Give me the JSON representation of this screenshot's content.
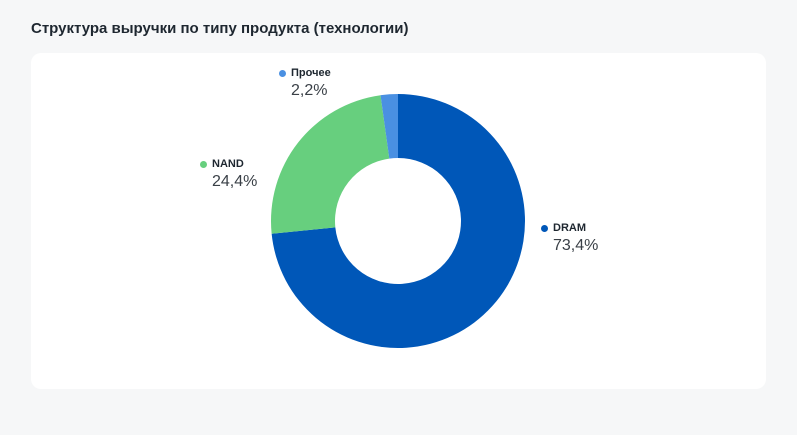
{
  "title": "Структура выручки по типу продукта (технологии)",
  "chart_data": {
    "type": "pie",
    "variant": "donut",
    "title": "Структура выручки по типу продукта (технологии)",
    "slices": [
      {
        "name": "DRAM",
        "value": 73.4,
        "label": "73,4%",
        "color": "#0057b8"
      },
      {
        "name": "NAND",
        "value": 24.4,
        "label": "24,4%",
        "color": "#67cf7e"
      },
      {
        "name": "Прочее",
        "value": 2.2,
        "label": "2,2%",
        "color": "#4a90e2"
      }
    ],
    "start": "top",
    "direction": "clockwise"
  }
}
